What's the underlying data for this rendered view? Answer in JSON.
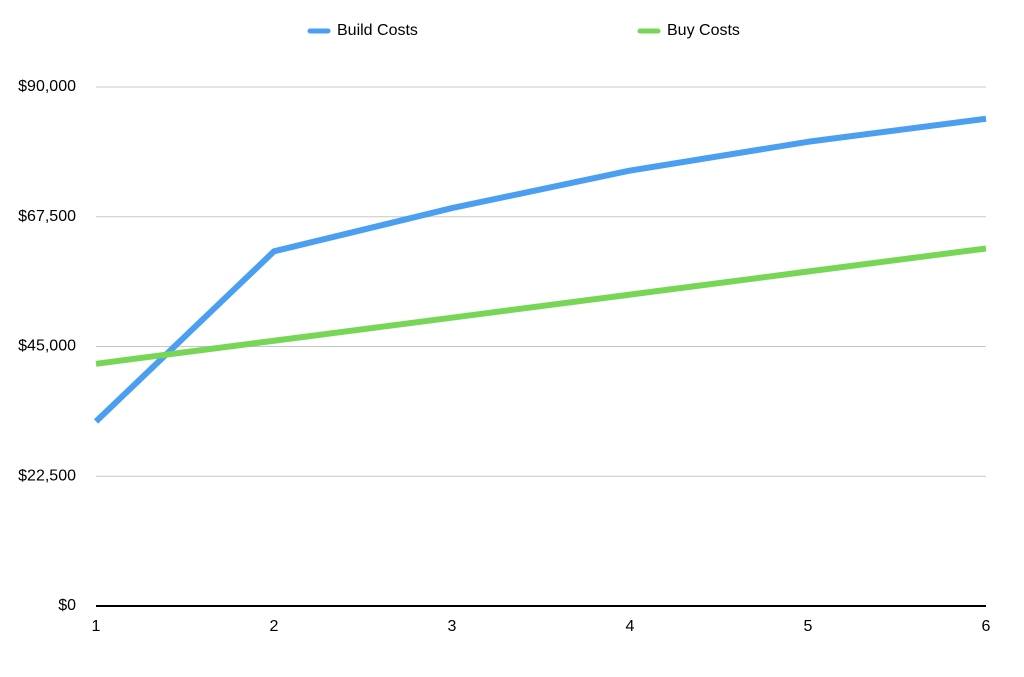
{
  "chart_data": {
    "type": "line",
    "x": [
      1,
      2,
      3,
      4,
      5,
      6
    ],
    "xlim": [
      1,
      6
    ],
    "xticks": [
      1,
      2,
      3,
      4,
      5,
      6
    ],
    "ylim": [
      0,
      90000
    ],
    "yticks": [
      {
        "value": 0,
        "label": "$0"
      },
      {
        "value": 22500,
        "label": "$22,500"
      },
      {
        "value": 45000,
        "label": "$45,000"
      },
      {
        "value": 67500,
        "label": "$67,500"
      },
      {
        "value": 90000,
        "label": "$90,000"
      }
    ],
    "grid": true,
    "legend": "top",
    "series": [
      {
        "name": "Build Costs",
        "color": "#4a9ff0",
        "values": [
          32000,
          61500,
          69000,
          75500,
          80500,
          84500
        ]
      },
      {
        "name": "Buy Costs",
        "color": "#77d655",
        "values": [
          42000,
          46000,
          50000,
          54000,
          58000,
          62000
        ]
      }
    ]
  }
}
